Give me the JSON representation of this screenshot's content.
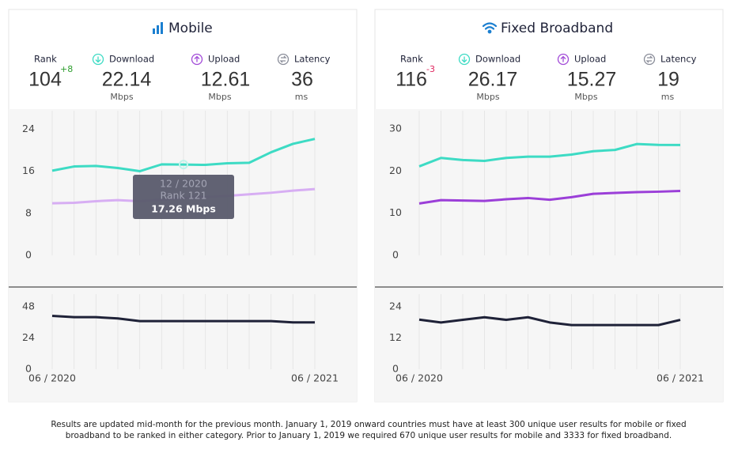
{
  "panels": [
    {
      "title": "Mobile",
      "stats": [
        {
          "label": "Rank",
          "value": 104,
          "change": "+8"
        },
        {
          "label": "Download",
          "value": 22.14,
          "unit": "Mbps"
        },
        {
          "label": "Upload",
          "value": 12.61,
          "unit": "Mbps"
        },
        {
          "label": "Latency",
          "value": 36,
          "unit": "ms"
        }
      ]
    },
    {
      "title": "Fixed Broadband",
      "stats": [
        {
          "label": "Rank",
          "value": 116,
          "change": "-3"
        },
        {
          "label": "Download",
          "value": 26.17,
          "unit": "Mbps"
        },
        {
          "label": "Upload",
          "value": 15.27,
          "unit": "Mbps"
        },
        {
          "label": "Latency",
          "value": 19,
          "unit": "ms"
        }
      ]
    }
  ],
  "chart_data": [
    {
      "type": "line",
      "categories": [
        null,
        null,
        null,
        null,
        null,
        null,
        null,
        null,
        null,
        null,
        null,
        null,
        null
      ],
      "series": [
        {
          "color": "#3ddbc4",
          "values": [
            16.1,
            16.9,
            17.0,
            16.6,
            16.0,
            17.3,
            17.26,
            17.2,
            17.5,
            17.6,
            19.6,
            21.2,
            22.14
          ],
          "value_labels": [
            null,
            null,
            null,
            null,
            null,
            null,
            "17.26 Mbps",
            null,
            null,
            null,
            null,
            null,
            null
          ]
        },
        {
          "color": "#d7aef3",
          "values": [
            9.9,
            10.0,
            10.3,
            10.5,
            10.3,
            10.6,
            10.9,
            11.1,
            11.3,
            11.6,
            11.9,
            12.3,
            12.61
          ]
        }
      ],
      "ylim": [
        0,
        27.5
      ],
      "yticks": [
        0,
        8,
        16,
        24
      ],
      "grid": "x",
      "tooltip": {
        "title": "12 / 2020",
        "subtitle": "Rank 121"
      }
    },
    {
      "type": "line",
      "categories": [
        "06 / 2020",
        null,
        null,
        null,
        null,
        null,
        null,
        null,
        null,
        null,
        null,
        null,
        "06 / 2021"
      ],
      "series": [
        {
          "color": "#1f2238",
          "values": [
            41,
            40,
            40,
            39,
            37,
            37,
            37,
            37,
            37,
            37,
            37,
            36,
            36
          ]
        }
      ],
      "ylim": [
        0,
        57.7
      ],
      "yticks": [
        0,
        24,
        48
      ],
      "grid": "x"
    },
    {
      "type": "line",
      "categories": [
        null,
        null,
        null,
        null,
        null,
        null,
        null,
        null,
        null,
        null,
        null,
        null,
        null
      ],
      "series": [
        {
          "color": "#3ddbc4",
          "values": [
            21.1,
            23.1,
            22.6,
            22.4,
            23.1,
            23.4,
            23.4,
            23.9,
            24.7,
            25.0,
            26.4,
            26.2,
            26.17
          ]
        },
        {
          "color": "#9b3fd8",
          "values": [
            12.3,
            13.1,
            13.0,
            12.9,
            13.3,
            13.6,
            13.2,
            13.8,
            14.6,
            14.8,
            15.0,
            15.1,
            15.27
          ]
        }
      ],
      "ylim": [
        0,
        34.3
      ],
      "yticks": [
        0,
        10,
        20,
        30
      ],
      "grid": "x"
    },
    {
      "type": "line",
      "categories": [
        "06 / 2020",
        null,
        null,
        null,
        null,
        null,
        null,
        null,
        null,
        null,
        null,
        null,
        "06 / 2021"
      ],
      "series": [
        {
          "color": "#1f2238",
          "values": [
            19.1,
            18,
            19,
            20,
            19,
            20,
            18,
            17,
            17,
            17,
            17,
            17,
            19
          ]
        }
      ],
      "ylim": [
        0,
        28.9
      ],
      "yticks": [
        0,
        12,
        24
      ],
      "grid": "x"
    }
  ],
  "footnote": [
    "Results are updated mid-month for the previous month. January 1, 2019 onward countries must have at least 300 unique user results for mobile or fixed",
    "broadband to be ranked in either category. Prior to January 1, 2019 we required 670 unique user results for mobile and 3333 for fixed broadband."
  ]
}
